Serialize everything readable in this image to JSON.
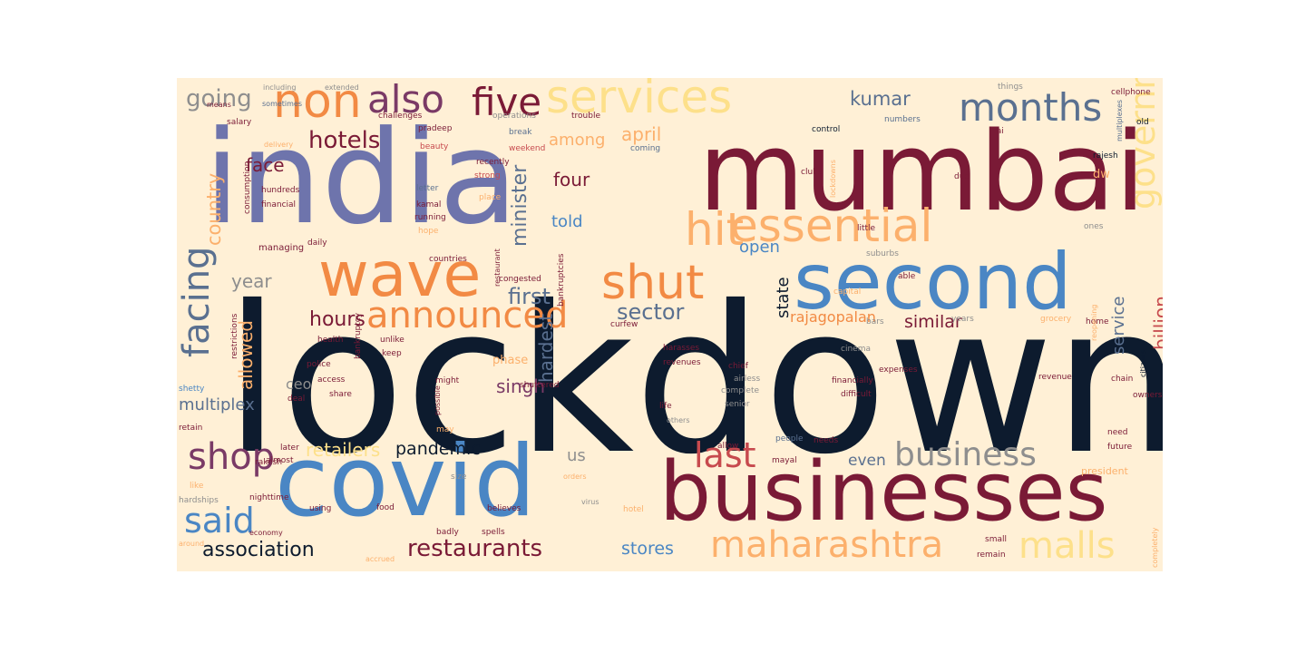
{
  "palette": {
    "navy": "#0d1b2e",
    "maroon": "#7a1a36",
    "periwinkle": "#6e74ac",
    "blue": "#4a86c4",
    "orange": "#f28a44",
    "peach": "#fcb06c",
    "yellow": "#fde08a",
    "gray": "#8e8e8e",
    "slate": "#5a7090",
    "purple": "#7a3a66",
    "red": "#c74a4e",
    "background": "#fff0d6"
  },
  "words": [
    {
      "text": "lockdown",
      "color": "#0d1b2e"
    },
    {
      "text": "mumbai",
      "color": "#7a1a36"
    },
    {
      "text": "india",
      "color": "#6e74ac"
    },
    {
      "text": "covid",
      "color": "#4a86c4"
    },
    {
      "text": "businesses",
      "color": "#7a1a36"
    },
    {
      "text": "second",
      "color": "#4a86c4"
    },
    {
      "text": "wave",
      "color": "#f28a44"
    },
    {
      "text": "essential",
      "color": "#fcb06c"
    },
    {
      "text": "services",
      "color": "#fde08a"
    },
    {
      "text": "non",
      "color": "#f28a44"
    },
    {
      "text": "also",
      "color": "#7a3a66"
    },
    {
      "text": "five",
      "color": "#7a1a36"
    },
    {
      "text": "months",
      "color": "#5a7090"
    },
    {
      "text": "shut",
      "color": "#f28a44"
    },
    {
      "text": "hit",
      "color": "#fcb06c"
    },
    {
      "text": "announced",
      "color": "#f28a44"
    },
    {
      "text": "business",
      "color": "#8e8e8e"
    },
    {
      "text": "maharashtra",
      "color": "#fcb06c"
    },
    {
      "text": "malls",
      "color": "#fde08a"
    },
    {
      "text": "government",
      "color": "#fde08a"
    },
    {
      "text": "facing",
      "color": "#5a7090"
    },
    {
      "text": "shop",
      "color": "#7a3a66"
    },
    {
      "text": "said",
      "color": "#4a86c4"
    },
    {
      "text": "last",
      "color": "#c74a4e"
    },
    {
      "text": "restaurants",
      "color": "#7a1a36"
    },
    {
      "text": "association",
      "color": "#0d1b2e"
    },
    {
      "text": "hotels",
      "color": "#7a1a36"
    },
    {
      "text": "going",
      "color": "#8e8e8e"
    },
    {
      "text": "first",
      "color": "#5a7090"
    },
    {
      "text": "sector",
      "color": "#5a7090"
    },
    {
      "text": "hours",
      "color": "#7a1a36"
    },
    {
      "text": "retailers",
      "color": "#fde08a"
    },
    {
      "text": "pandemic",
      "color": "#0d1b2e"
    },
    {
      "text": "stores",
      "color": "#4a86c4"
    },
    {
      "text": "kumar",
      "color": "#5a7090"
    },
    {
      "text": "among",
      "color": "#fcb06c"
    },
    {
      "text": "april",
      "color": "#fcb06c"
    },
    {
      "text": "four",
      "color": "#7a1a36"
    },
    {
      "text": "told",
      "color": "#4a86c4"
    },
    {
      "text": "minister",
      "color": "#5a7090"
    },
    {
      "text": "face",
      "color": "#7a1a36"
    },
    {
      "text": "country",
      "color": "#fcb06c"
    },
    {
      "text": "year",
      "color": "#8e8e8e"
    },
    {
      "text": "allowed",
      "color": "#fcb06c"
    },
    {
      "text": "multiplex",
      "color": "#5a7090"
    },
    {
      "text": "open",
      "color": "#4a86c4"
    },
    {
      "text": "state",
      "color": "#0d1b2e"
    },
    {
      "text": "rajagopalan",
      "color": "#f28a44"
    },
    {
      "text": "similar",
      "color": "#7a1a36"
    },
    {
      "text": "service",
      "color": "#5a7090"
    },
    {
      "text": "billion",
      "color": "#c74a4e"
    },
    {
      "text": "even",
      "color": "#5a7090"
    },
    {
      "text": "hardest",
      "color": "#5a7090"
    },
    {
      "text": "singh",
      "color": "#7a3a66"
    },
    {
      "text": "ceo",
      "color": "#8e8e8e"
    },
    {
      "text": "us",
      "color": "#8e8e8e"
    },
    {
      "text": "phase",
      "color": "#fcb06c"
    },
    {
      "text": "dw",
      "color": "#fcb06c"
    },
    {
      "text": "grocery",
      "color": "#fcb06c"
    },
    {
      "text": "nighttime",
      "color": "#7a1a36"
    },
    {
      "text": "curfew",
      "color": "#7a1a36"
    },
    {
      "text": "daily",
      "color": "#7a1a36"
    },
    {
      "text": "managing",
      "color": "#7a1a36"
    },
    {
      "text": "hundreds",
      "color": "#7a1a36"
    },
    {
      "text": "financial",
      "color": "#7a1a36"
    },
    {
      "text": "consumption",
      "color": "#7a1a36"
    },
    {
      "text": "salary",
      "color": "#7a1a36"
    },
    {
      "text": "including",
      "color": "#8e8e8e"
    },
    {
      "text": "extended",
      "color": "#8e8e8e"
    },
    {
      "text": "means",
      "color": "#7a1a36"
    },
    {
      "text": "sometimes",
      "color": "#5a7090"
    },
    {
      "text": "delivery",
      "color": "#fcb06c"
    },
    {
      "text": "challenges",
      "color": "#7a1a36"
    },
    {
      "text": "pradeep",
      "color": "#7a1a36"
    },
    {
      "text": "beauty",
      "color": "#c74a4e"
    },
    {
      "text": "break",
      "color": "#5a7090"
    },
    {
      "text": "weekend",
      "color": "#c74a4e"
    },
    {
      "text": "operations",
      "color": "#8e8e8e"
    },
    {
      "text": "trouble",
      "color": "#7a1a36"
    },
    {
      "text": "coming",
      "color": "#5a7090"
    },
    {
      "text": "letter",
      "color": "#5a7090"
    },
    {
      "text": "recently",
      "color": "#7a1a36"
    },
    {
      "text": "strong",
      "color": "#c74a4e"
    },
    {
      "text": "kamal",
      "color": "#7a1a36"
    },
    {
      "text": "running",
      "color": "#7a1a36"
    },
    {
      "text": "hope",
      "color": "#fcb06c"
    },
    {
      "text": "place",
      "color": "#fcb06c"
    },
    {
      "text": "control",
      "color": "#0d1b2e"
    },
    {
      "text": "numbers",
      "color": "#5a7090"
    },
    {
      "text": "things",
      "color": "#8e8e8e"
    },
    {
      "text": "cellphone",
      "color": "#7a1a36"
    },
    {
      "text": "rajesh",
      "color": "#0d1b2e"
    },
    {
      "text": "clubs",
      "color": "#7a1a36"
    },
    {
      "text": "little",
      "color": "#7a1a36"
    },
    {
      "text": "lockdowns",
      "color": "#fcb06c"
    },
    {
      "text": "multiplexes",
      "color": "#5a7090"
    },
    {
      "text": "due",
      "color": "#7a1a36"
    },
    {
      "text": "rai",
      "color": "#7a1a36"
    },
    {
      "text": "old",
      "color": "#0d1b2e"
    },
    {
      "text": "ones",
      "color": "#8e8e8e"
    },
    {
      "text": "countries",
      "color": "#7a1a36"
    },
    {
      "text": "restaurant",
      "color": "#7a1a36"
    },
    {
      "text": "congested",
      "color": "#7a1a36"
    },
    {
      "text": "capital",
      "color": "#fcb06c"
    },
    {
      "text": "able",
      "color": "#7a1a36"
    },
    {
      "text": "suburbs",
      "color": "#8e8e8e"
    },
    {
      "text": "bars",
      "color": "#8e8e8e"
    },
    {
      "text": "bankruptcies",
      "color": "#7a1a36"
    },
    {
      "text": "cinema",
      "color": "#8e8e8e"
    },
    {
      "text": "years",
      "color": "#8e8e8e"
    },
    {
      "text": "home",
      "color": "#7a1a36"
    },
    {
      "text": "health",
      "color": "#7a1a36"
    },
    {
      "text": "unlike",
      "color": "#7a1a36"
    },
    {
      "text": "police",
      "color": "#7a1a36"
    },
    {
      "text": "keep",
      "color": "#7a1a36"
    },
    {
      "text": "restrictions",
      "color": "#7a1a36"
    },
    {
      "text": "access",
      "color": "#7a1a36"
    },
    {
      "text": "bankruptcy",
      "color": "#7a1a36"
    },
    {
      "text": "shetty",
      "color": "#4a86c4"
    },
    {
      "text": "might",
      "color": "#7a1a36"
    },
    {
      "text": "shuttered",
      "color": "#7a1a36"
    },
    {
      "text": "chief",
      "color": "#7a1a36"
    },
    {
      "text": "airless",
      "color": "#8e8e8e"
    },
    {
      "text": "complete",
      "color": "#8e8e8e"
    },
    {
      "text": "senior",
      "color": "#8e8e8e"
    },
    {
      "text": "difficult",
      "color": "#7a1a36"
    },
    {
      "text": "expenses",
      "color": "#7a1a36"
    },
    {
      "text": "financially",
      "color": "#7a1a36"
    },
    {
      "text": "chain",
      "color": "#7a1a36"
    },
    {
      "text": "owners",
      "color": "#7a1a36"
    },
    {
      "text": "citizens",
      "color": "#0d1b2e"
    },
    {
      "text": "harasses",
      "color": "#7a1a36"
    },
    {
      "text": "revenues",
      "color": "#7a1a36"
    },
    {
      "text": "possible",
      "color": "#7a1a36"
    },
    {
      "text": "deal",
      "color": "#7a1a36"
    },
    {
      "text": "share",
      "color": "#7a1a36"
    },
    {
      "text": "retain",
      "color": "#7a1a36"
    },
    {
      "text": "life",
      "color": "#7a1a36"
    },
    {
      "text": "reopening",
      "color": "#fcb06c"
    },
    {
      "text": "revenue",
      "color": "#7a1a36"
    },
    {
      "text": "future",
      "color": "#7a1a36"
    },
    {
      "text": "need",
      "color": "#7a1a36"
    },
    {
      "text": "people",
      "color": "#5a7090"
    },
    {
      "text": "needs",
      "color": "#7a1a36"
    },
    {
      "text": "mayal",
      "color": "#7a1a36"
    },
    {
      "text": "allow",
      "color": "#7a1a36"
    },
    {
      "text": "president",
      "color": "#fcb06c"
    },
    {
      "text": "later",
      "color": "#7a1a36"
    },
    {
      "text": "almost",
      "color": "#7a1a36"
    },
    {
      "text": "hardships",
      "color": "#8e8e8e"
    },
    {
      "text": "like",
      "color": "#fcb06c"
    },
    {
      "text": "rakesh",
      "color": "#7a1a36"
    },
    {
      "text": "using",
      "color": "#7a1a36"
    },
    {
      "text": "food",
      "color": "#7a1a36"
    },
    {
      "text": "believes",
      "color": "#7a1a36"
    },
    {
      "text": "badly",
      "color": "#7a1a36"
    },
    {
      "text": "spells",
      "color": "#7a1a36"
    },
    {
      "text": "small",
      "color": "#7a1a36"
    },
    {
      "text": "remain",
      "color": "#7a1a36"
    },
    {
      "text": "economy",
      "color": "#7a1a36"
    },
    {
      "text": "around",
      "color": "#fcb06c"
    },
    {
      "text": "accrued",
      "color": "#fcb06c"
    },
    {
      "text": "completely",
      "color": "#fcb06c"
    },
    {
      "text": "hotel",
      "color": "#fcb06c"
    },
    {
      "text": "orders",
      "color": "#fcb06c"
    },
    {
      "text": "virus",
      "color": "#8e8e8e"
    },
    {
      "text": "others",
      "color": "#8e8e8e"
    },
    {
      "text": "may",
      "color": "#fcb06c"
    },
    {
      "text": "size",
      "color": "#8e8e8e"
    }
  ]
}
